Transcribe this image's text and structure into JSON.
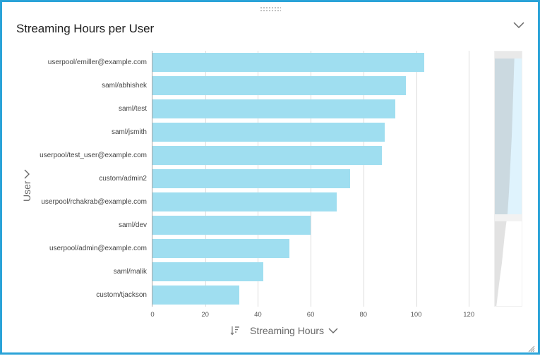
{
  "visual": {
    "title": "Streaming Hours per User",
    "collapse_icon": "chevron-down-icon",
    "drag_icon": "drag-dots-icon",
    "resize_icon": "resize-grip-icon",
    "border_color": "#2aa3d8",
    "bar_color": "#9fdef0"
  },
  "y_axis": {
    "title": "User",
    "expand_icon": "chevron-right-icon"
  },
  "x_axis": {
    "title": "Streaming Hours",
    "sort_icon": "sort-descending-icon",
    "dropdown_icon": "chevron-down-icon",
    "ticks": [
      "0",
      "20",
      "40",
      "60",
      "80",
      "100",
      "120"
    ]
  },
  "chart_data": {
    "type": "bar",
    "orientation": "horizontal",
    "title": "Streaming Hours per User",
    "xlabel": "Streaming Hours",
    "ylabel": "User",
    "xlim": [
      0,
      130
    ],
    "grid": true,
    "legend": null,
    "categories": [
      "userpool/emiller@example.com",
      "saml/abhishek",
      "saml/test",
      "saml/jsmith",
      "userpool/test_user@example.com",
      "custom/admin2",
      "userpool/rchakrab@example.com",
      "saml/dev",
      "userpool/admin@example.com",
      "saml/malik",
      "custom/tjackson"
    ],
    "values": [
      103,
      96,
      92,
      88,
      87,
      75,
      70,
      60,
      52,
      42,
      33
    ],
    "x_ticks": [
      0,
      20,
      40,
      60,
      80,
      100,
      120
    ]
  }
}
